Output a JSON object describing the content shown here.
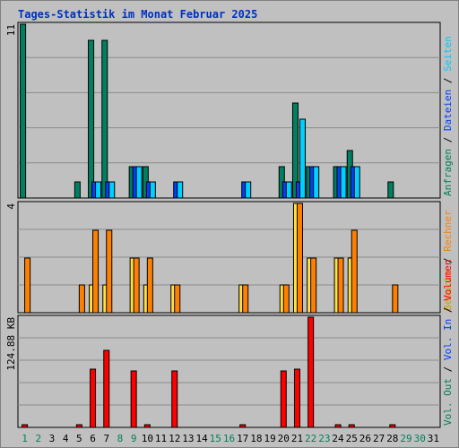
{
  "chart_data": {
    "type": "bar",
    "title": "Tages-Statistik im Monat Februar 2025",
    "days": [
      "1",
      "2",
      "3",
      "4",
      "5",
      "6",
      "7",
      "8",
      "9",
      "10",
      "11",
      "12",
      "13",
      "14",
      "15",
      "16",
      "17",
      "18",
      "19",
      "20",
      "21",
      "22",
      "23",
      "24",
      "25",
      "26",
      "27",
      "28",
      "29",
      "30",
      "31"
    ],
    "weekend_days": [
      "1",
      "2",
      "8",
      "9",
      "15",
      "16",
      "22",
      "23",
      "29",
      "30"
    ],
    "panels": [
      {
        "id": "top",
        "ymax": 11,
        "ymax_label": "11",
        "legend": [
          {
            "text": "Anfragen",
            "color": "#00805c"
          },
          {
            "text": "Dateien",
            "color": "#0040ff"
          },
          {
            "text": "Seiten",
            "color": "#00c8ff"
          }
        ],
        "series": [
          {
            "name": "Anfragen",
            "color": "#008060",
            "values": [
              11,
              0,
              0,
              0,
              1,
              10,
              10,
              0,
              2,
              2,
              0,
              0,
              0,
              0,
              0,
              0,
              0,
              0,
              0,
              2,
              6,
              2,
              0,
              2,
              3,
              0,
              0,
              1,
              0,
              0,
              0
            ]
          },
          {
            "name": "Dateien",
            "color": "#0040ff",
            "values": [
              0,
              0,
              0,
              0,
              0,
              1,
              1,
              0,
              2,
              1,
              0,
              1,
              0,
              0,
              0,
              0,
              1,
              0,
              0,
              1,
              1,
              2,
              0,
              2,
              2,
              0,
              0,
              0,
              0,
              0,
              0
            ]
          },
          {
            "name": "Seiten",
            "color": "#00d0ff",
            "values": [
              0,
              0,
              0,
              0,
              0,
              1,
              1,
              0,
              2,
              1,
              0,
              1,
              0,
              0,
              0,
              0,
              1,
              0,
              0,
              1,
              5,
              2,
              0,
              2,
              2,
              0,
              0,
              0,
              0,
              0,
              0
            ]
          }
        ]
      },
      {
        "id": "middle",
        "ymax": 4,
        "ymax_label": "4",
        "legend": [
          {
            "text": "Besuche",
            "color": "#d0a000"
          },
          {
            "text": "Rechner",
            "color": "#ff8000"
          }
        ],
        "series": [
          {
            "name": "Besuche",
            "color": "#ffe040",
            "values": [
              0,
              0,
              0,
              0,
              0,
              1,
              1,
              0,
              2,
              1,
              0,
              1,
              0,
              0,
              0,
              0,
              1,
              0,
              0,
              1,
              4,
              2,
              0,
              2,
              2,
              0,
              0,
              0,
              0,
              0,
              0
            ]
          },
          {
            "name": "Rechner",
            "color": "#ff8000",
            "values": [
              2,
              0,
              0,
              0,
              1,
              3,
              3,
              0,
              2,
              2,
              0,
              1,
              0,
              0,
              0,
              0,
              1,
              0,
              0,
              1,
              4,
              2,
              0,
              2,
              3,
              0,
              0,
              1,
              0,
              0,
              0
            ]
          }
        ]
      },
      {
        "id": "bottom",
        "ymax": 162,
        "ymax_label": "124.88 KB",
        "ref_value": 124.88,
        "legend": [
          {
            "text": "Vol. Out",
            "color": "#00805c"
          },
          {
            "text": "Vol. In",
            "color": "#0040ff"
          },
          {
            "text": "Volumen",
            "color": "#ff0000"
          }
        ],
        "series": [
          {
            "name": "Volumen",
            "color": "#ff0000",
            "values": [
              4,
              0,
              0,
              0,
              2,
              86,
              113,
              0,
              83,
              2,
              0,
              83,
              0,
              0,
              0,
              0,
              2,
              0,
              0,
              83,
              85,
              162,
              0,
              2,
              2,
              0,
              0,
              2,
              0,
              0,
              0
            ]
          }
        ]
      }
    ]
  }
}
